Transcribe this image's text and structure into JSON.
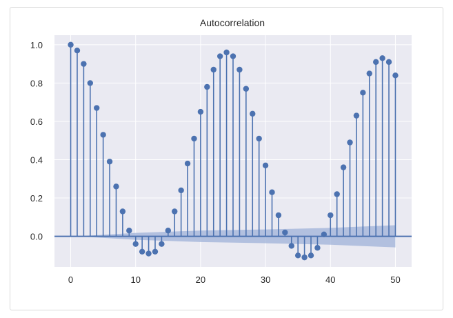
{
  "chart_data": {
    "type": "stem",
    "title": "Autocorrelation",
    "xlabel": "",
    "ylabel": "",
    "xlim": [
      -2.5,
      52.5
    ],
    "ylim": [
      -0.16,
      1.05
    ],
    "grid": true,
    "x_ticks": [
      0,
      10,
      20,
      30,
      40,
      50
    ],
    "y_ticks": [
      0.0,
      0.2,
      0.4,
      0.6,
      0.8,
      1.0
    ],
    "y_tick_labels": [
      "0.0",
      "0.2",
      "0.4",
      "0.6",
      "0.8",
      "1.0"
    ],
    "lags": [
      0,
      1,
      2,
      3,
      4,
      5,
      6,
      7,
      8,
      9,
      10,
      11,
      12,
      13,
      14,
      15,
      16,
      17,
      18,
      19,
      20,
      21,
      22,
      23,
      24,
      25,
      26,
      27,
      28,
      29,
      30,
      31,
      32,
      33,
      34,
      35,
      36,
      37,
      38,
      39,
      40,
      41,
      42,
      43,
      44,
      45,
      46,
      47,
      48,
      49,
      50
    ],
    "values": [
      1.0,
      0.97,
      0.9,
      0.8,
      0.67,
      0.53,
      0.39,
      0.26,
      0.13,
      0.03,
      -0.04,
      -0.08,
      -0.09,
      -0.08,
      -0.04,
      0.03,
      0.13,
      0.24,
      0.38,
      0.51,
      0.65,
      0.78,
      0.87,
      0.94,
      0.96,
      0.94,
      0.87,
      0.77,
      0.64,
      0.51,
      0.37,
      0.23,
      0.11,
      0.02,
      -0.05,
      -0.1,
      -0.11,
      -0.1,
      -0.06,
      0.01,
      0.11,
      0.22,
      0.36,
      0.49,
      0.63,
      0.75,
      0.85,
      0.91,
      0.93,
      0.91,
      0.84
    ],
    "confidence_band": {
      "x": [
        1,
        10,
        20,
        30,
        40,
        50
      ],
      "upper": [
        0.0,
        0.018,
        0.03,
        0.036,
        0.044,
        0.058
      ],
      "lower": [
        0.0,
        -0.018,
        -0.03,
        -0.036,
        -0.044,
        -0.058
      ]
    },
    "colors": {
      "stem": "#4c72b0",
      "band": "#9fb1d8",
      "axes_bg": "#eaeaf2",
      "grid": "#ffffff"
    }
  }
}
